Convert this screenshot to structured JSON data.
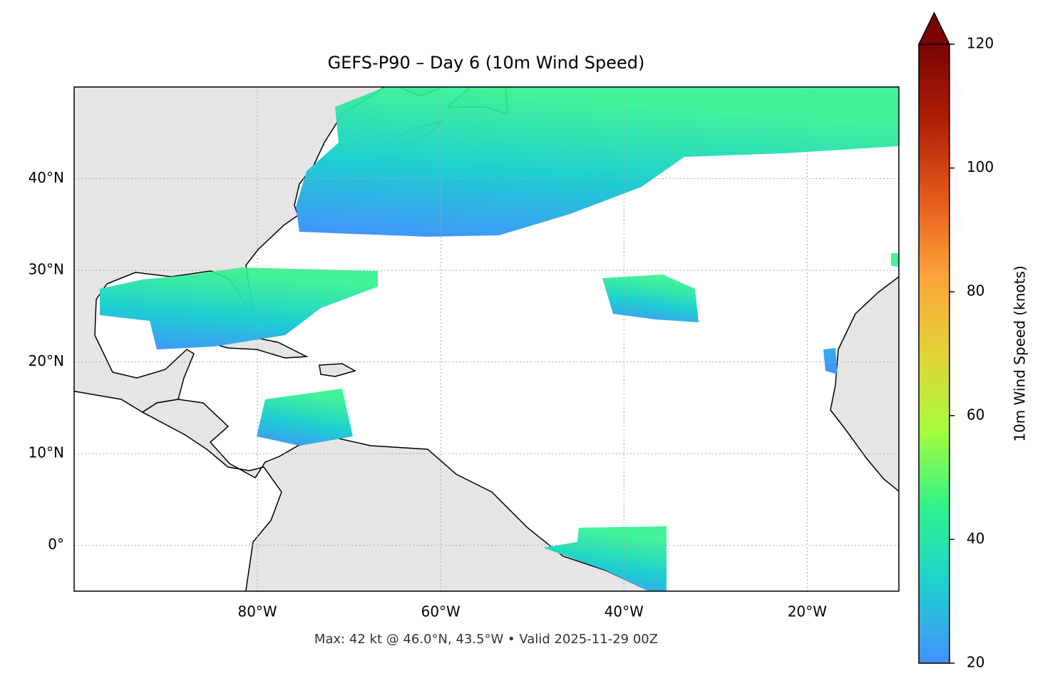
{
  "chart_data": {
    "type": "map",
    "title": "GEFS-P90 – Day 6 (10m Wind Speed)",
    "footer": "Max: 42 kt @ 46.0°N, 43.5°W • Valid 2025-11-29 00Z",
    "xlim": [
      -100,
      -10
    ],
    "ylim": [
      -5,
      50
    ],
    "xticks": [
      {
        "value": -80,
        "label": "80°W"
      },
      {
        "value": -60,
        "label": "60°W"
      },
      {
        "value": -40,
        "label": "40°W"
      },
      {
        "value": -20,
        "label": "20°W"
      }
    ],
    "yticks": [
      {
        "value": 0,
        "label": "0°"
      },
      {
        "value": 10,
        "label": "10°N"
      },
      {
        "value": 20,
        "label": "20°N"
      },
      {
        "value": 30,
        "label": "30°N"
      },
      {
        "value": 40,
        "label": "40°N"
      }
    ],
    "grid": true,
    "colorbar": {
      "label": "10m Wind Speed (knots)",
      "lim": [
        20,
        120
      ],
      "ticks": [
        20,
        40,
        60,
        80,
        100,
        120
      ],
      "colors": [
        "#4490fe",
        "#1ed0d0",
        "#2ff28c",
        "#a5fc3c",
        "#e3d337",
        "#fca43a",
        "#e55a1c",
        "#b01f05",
        "#7a0403"
      ],
      "extend": "max"
    }
  }
}
